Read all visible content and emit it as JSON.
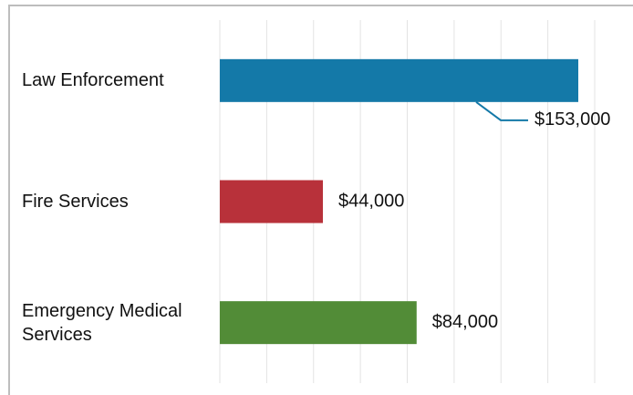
{
  "chart_data": {
    "type": "bar",
    "orientation": "horizontal",
    "categories": [
      "Law Enforcement",
      "Fire Services",
      "Emergency Medical Services"
    ],
    "series": [
      {
        "values": [
          153000,
          44000,
          84000
        ],
        "colors": [
          "#1479a8",
          "#b8313a",
          "#528c37"
        ],
        "value_labels": [
          "$153,000",
          "$44,000",
          "$84,000"
        ]
      }
    ],
    "xlim": [
      0,
      160000
    ],
    "xticks": [
      0,
      20000,
      40000,
      60000,
      80000,
      100000,
      120000,
      140000,
      160000
    ],
    "grid": true
  }
}
